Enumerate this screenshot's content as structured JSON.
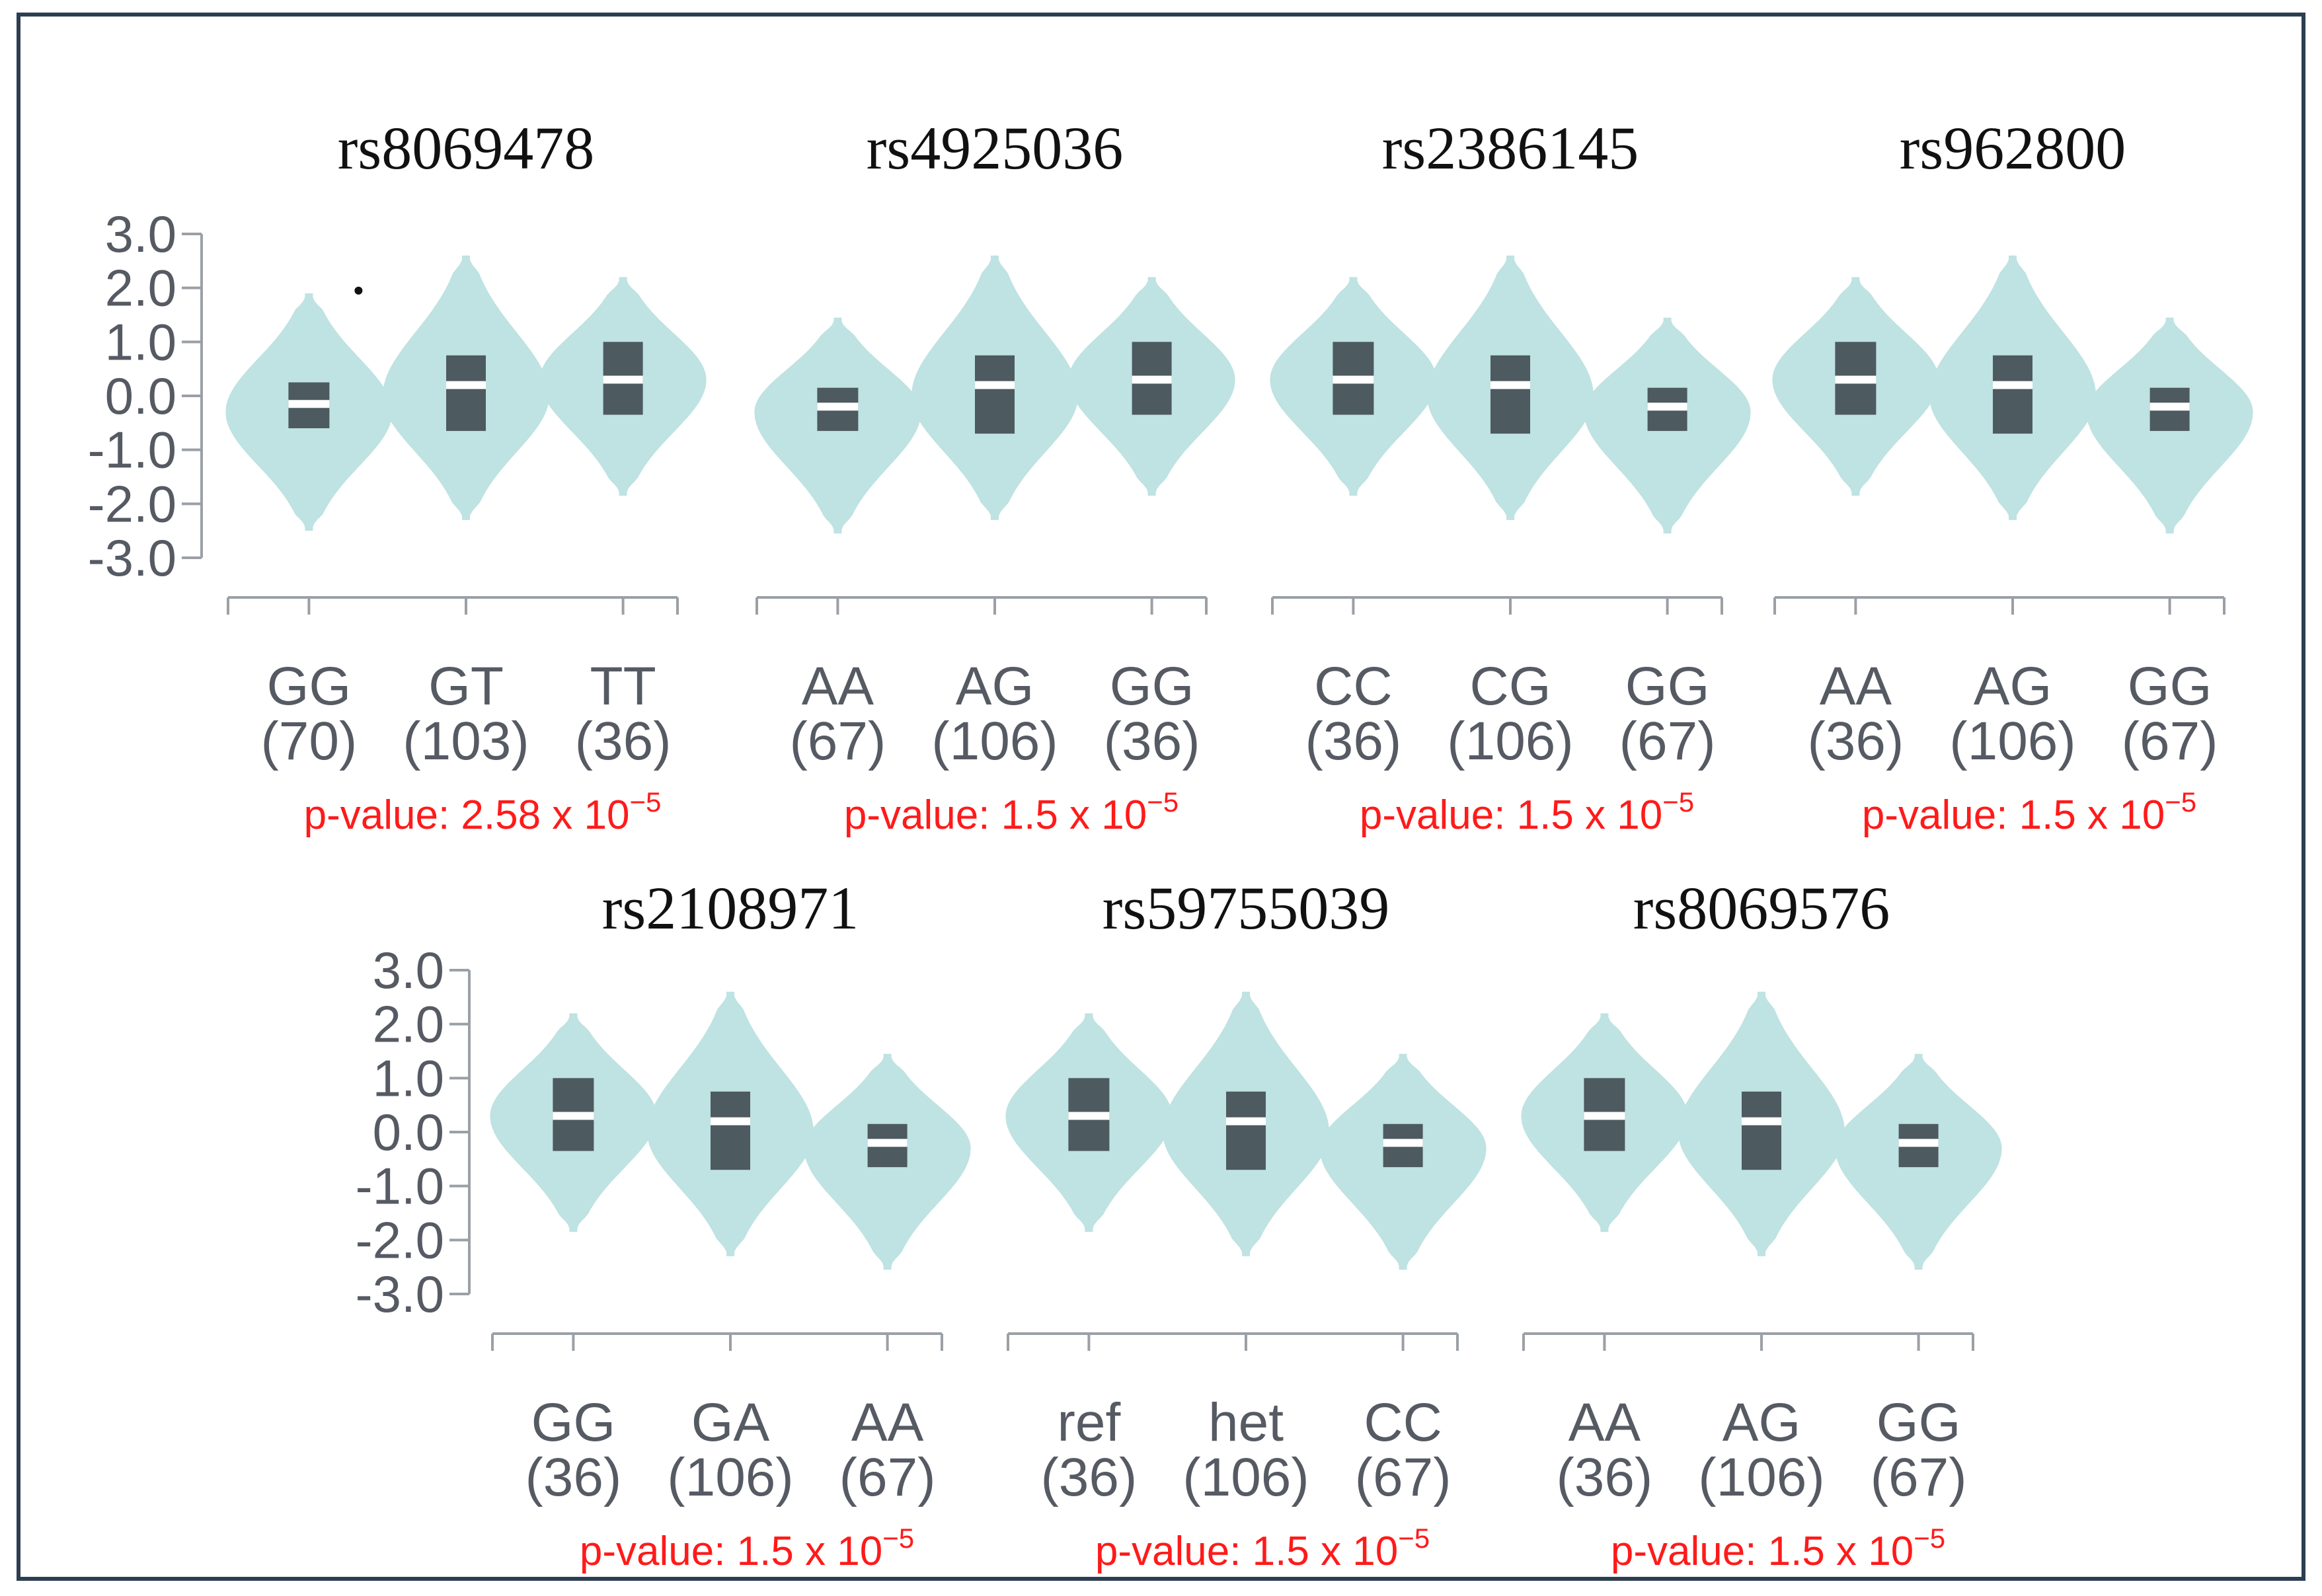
{
  "chart_data": {
    "type": "violin",
    "y_ticks": [
      "3.0",
      "2.0",
      "1.0",
      "0.0",
      "-1.0",
      "-2.0",
      "-3.0"
    ],
    "ylim": [
      -3.0,
      3.0
    ],
    "colors": {
      "violin": "#bfe2e2",
      "box": "#4d5a5f",
      "median": "#ffffff",
      "axis": "#9aa0a6",
      "pvalue": "#ff1a1a",
      "border": "#2c3e50"
    },
    "rows": [
      {
        "panels": [
          {
            "title": "rs8069478",
            "genotypes": [
              {
                "label": "GG",
                "count": "(70)",
                "q1": -0.6,
                "median": -0.15,
                "q3": 0.25,
                "min": -2.5,
                "max": 1.9,
                "center": -0.3
              },
              {
                "label": "GT",
                "count": "(103)",
                "q1": -0.65,
                "median": 0.2,
                "q3": 0.75,
                "min": -2.3,
                "max": 2.6,
                "center": 0.0
              },
              {
                "label": "TT",
                "count": "(36)",
                "q1": -0.35,
                "median": 0.3,
                "q3": 1.0,
                "min": -1.85,
                "max": 2.2,
                "center": 0.3
              }
            ],
            "outlier": {
              "genotype": "GG",
              "value": 1.95
            },
            "p_value": {
              "prefix": "p-value: ",
              "base": "2.58 x 10",
              "exponent": "−5"
            }
          },
          {
            "title": "rs4925036",
            "genotypes": [
              {
                "label": "AA",
                "count": "(67)",
                "q1": -0.65,
                "median": -0.2,
                "q3": 0.15,
                "min": -2.55,
                "max": 1.45,
                "center": -0.3
              },
              {
                "label": "AG",
                "count": "(106)",
                "q1": -0.7,
                "median": 0.2,
                "q3": 0.75,
                "min": -2.3,
                "max": 2.6,
                "center": 0.0
              },
              {
                "label": "GG",
                "count": "(36)",
                "q1": -0.35,
                "median": 0.3,
                "q3": 1.0,
                "min": -1.85,
                "max": 2.2,
                "center": 0.3
              }
            ],
            "p_value": {
              "prefix": "p-value: ",
              "base": "1.5 x 10",
              "exponent": "−5"
            }
          },
          {
            "title": "rs2386145",
            "genotypes": [
              {
                "label": "CC",
                "count": "(36)",
                "q1": -0.35,
                "median": 0.3,
                "q3": 1.0,
                "min": -1.85,
                "max": 2.2,
                "center": 0.3
              },
              {
                "label": "CG",
                "count": "(106)",
                "q1": -0.7,
                "median": 0.2,
                "q3": 0.75,
                "min": -2.3,
                "max": 2.6,
                "center": 0.0
              },
              {
                "label": "GG",
                "count": "(67)",
                "q1": -0.65,
                "median": -0.2,
                "q3": 0.15,
                "min": -2.55,
                "max": 1.45,
                "center": -0.3
              }
            ],
            "p_value": {
              "prefix": "p-value: ",
              "base": "1.5 x 10",
              "exponent": "−5"
            }
          },
          {
            "title": "rs962800",
            "genotypes": [
              {
                "label": "AA",
                "count": "(36)",
                "q1": -0.35,
                "median": 0.3,
                "q3": 1.0,
                "min": -1.85,
                "max": 2.2,
                "center": 0.3
              },
              {
                "label": "AG",
                "count": "(106)",
                "q1": -0.7,
                "median": 0.2,
                "q3": 0.75,
                "min": -2.3,
                "max": 2.6,
                "center": 0.0
              },
              {
                "label": "GG",
                "count": "(67)",
                "q1": -0.65,
                "median": -0.2,
                "q3": 0.15,
                "min": -2.55,
                "max": 1.45,
                "center": -0.3
              }
            ],
            "p_value": {
              "prefix": "p-value: ",
              "base": "1.5 x 10",
              "exponent": "−5"
            }
          }
        ]
      },
      {
        "panels": [
          {
            "title": "rs2108971",
            "genotypes": [
              {
                "label": "GG",
                "count": "(36)",
                "q1": -0.35,
                "median": 0.3,
                "q3": 1.0,
                "min": -1.85,
                "max": 2.2,
                "center": 0.3
              },
              {
                "label": "GA",
                "count": "(106)",
                "q1": -0.7,
                "median": 0.2,
                "q3": 0.75,
                "min": -2.3,
                "max": 2.6,
                "center": 0.0
              },
              {
                "label": "AA",
                "count": "(67)",
                "q1": -0.65,
                "median": -0.2,
                "q3": 0.15,
                "min": -2.55,
                "max": 1.45,
                "center": -0.3
              }
            ],
            "p_value": {
              "prefix": "p-value: ",
              "base": "1.5 x 10",
              "exponent": "−5"
            }
          },
          {
            "title": "rs59755039",
            "genotypes": [
              {
                "label": "ref",
                "count": "(36)",
                "q1": -0.35,
                "median": 0.3,
                "q3": 1.0,
                "min": -1.85,
                "max": 2.2,
                "center": 0.3
              },
              {
                "label": "het",
                "count": "(106)",
                "q1": -0.7,
                "median": 0.2,
                "q3": 0.75,
                "min": -2.3,
                "max": 2.6,
                "center": 0.0
              },
              {
                "label": "CC",
                "count": "(67)",
                "q1": -0.65,
                "median": -0.2,
                "q3": 0.15,
                "min": -2.55,
                "max": 1.45,
                "center": -0.3
              }
            ],
            "p_value": {
              "prefix": "p-value: ",
              "base": "1.5 x 10",
              "exponent": "−5"
            }
          },
          {
            "title": "rs8069576",
            "genotypes": [
              {
                "label": "AA",
                "count": "(36)",
                "q1": -0.35,
                "median": 0.3,
                "q3": 1.0,
                "min": -1.85,
                "max": 2.2,
                "center": 0.3
              },
              {
                "label": "AG",
                "count": "(106)",
                "q1": -0.7,
                "median": 0.2,
                "q3": 0.75,
                "min": -2.3,
                "max": 2.6,
                "center": 0.0
              },
              {
                "label": "GG",
                "count": "(67)",
                "q1": -0.65,
                "median": -0.2,
                "q3": 0.15,
                "min": -2.55,
                "max": 1.45,
                "center": -0.3
              }
            ],
            "p_value": {
              "prefix": "p-value: ",
              "base": "1.5 x 10",
              "exponent": "−5"
            }
          }
        ]
      }
    ]
  }
}
